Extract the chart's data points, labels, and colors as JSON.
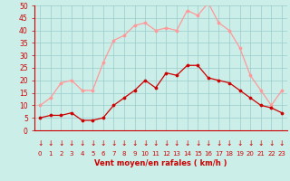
{
  "x": [
    0,
    1,
    2,
    3,
    4,
    5,
    6,
    7,
    8,
    9,
    10,
    11,
    12,
    13,
    14,
    15,
    16,
    17,
    18,
    19,
    20,
    21,
    22,
    23
  ],
  "wind_avg": [
    5,
    6,
    6,
    7,
    4,
    4,
    5,
    10,
    13,
    16,
    20,
    17,
    23,
    22,
    26,
    26,
    21,
    20,
    19,
    16,
    13,
    10,
    9,
    7
  ],
  "wind_gust": [
    10,
    13,
    19,
    20,
    16,
    16,
    27,
    36,
    38,
    42,
    43,
    40,
    41,
    40,
    48,
    46,
    51,
    43,
    40,
    33,
    22,
    16,
    10,
    16
  ],
  "ylim": [
    0,
    50
  ],
  "xlabel": "Vent moyen/en rafales ( km/h )",
  "bg_color": "#cceee8",
  "grid_color": "#99cccc",
  "avg_color": "#cc0000",
  "gust_color": "#ff9999",
  "marker_size": 2.2,
  "linewidth": 0.9
}
